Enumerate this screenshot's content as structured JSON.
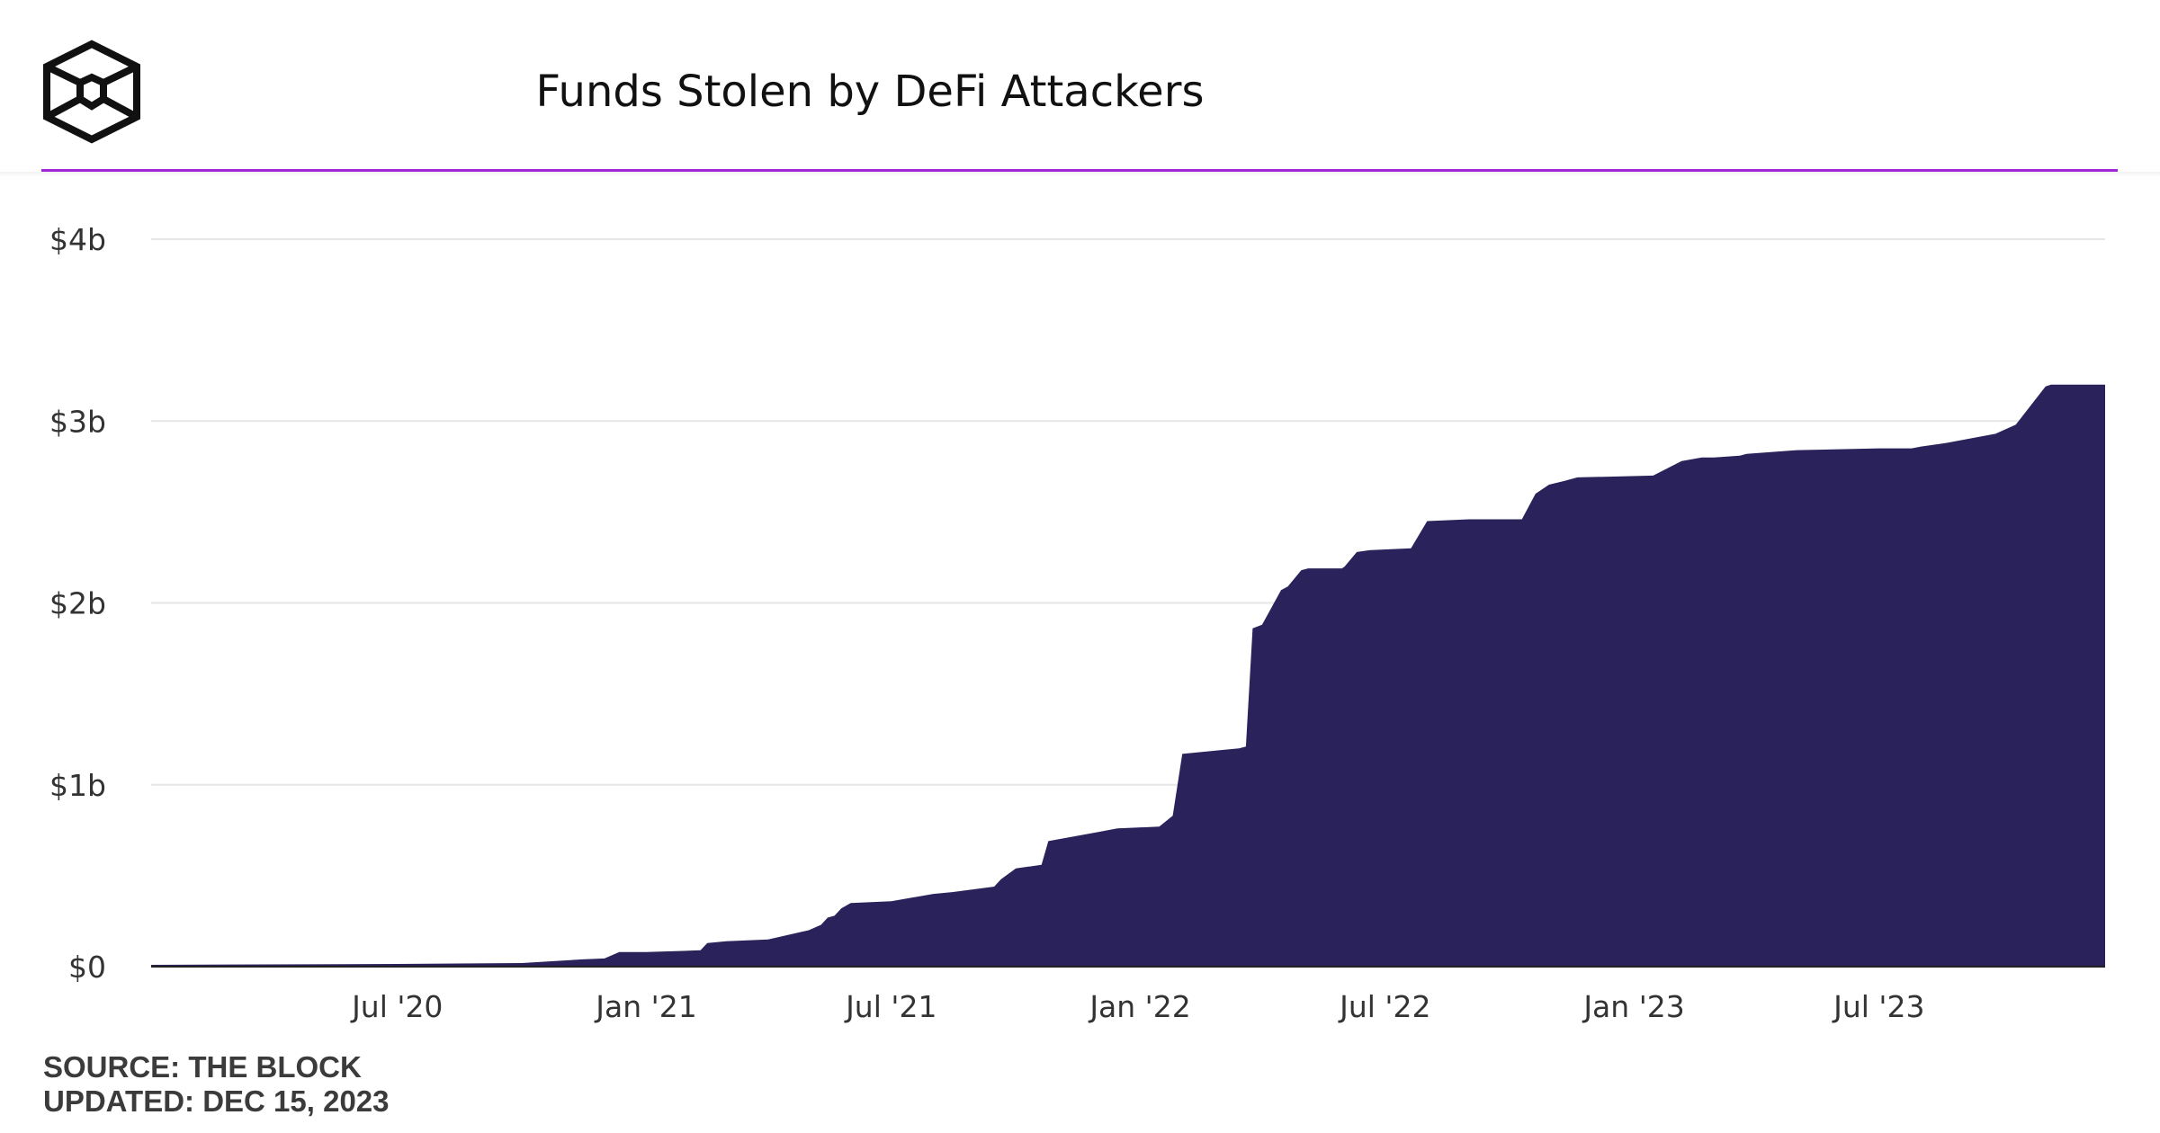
{
  "header": {
    "logo_name": "the-block-cube-logo",
    "title": "Funds Stolen by DeFi Attackers"
  },
  "colors": {
    "area_fill": "#2a225a",
    "accent_rule": "#a126d8",
    "grid": "#e6e6e6",
    "axis_text": "#333333"
  },
  "chart_data": {
    "type": "area",
    "title": "Funds Stolen by DeFi Attackers",
    "xlabel": "",
    "ylabel": "",
    "y_unit": "USD",
    "ylim": [
      0,
      4000000000
    ],
    "xlim": [
      "2020-01-01",
      "2023-12-15"
    ],
    "y_ticks": [
      {
        "value": 0,
        "label": "$0"
      },
      {
        "value": 1000000000,
        "label": "$1b"
      },
      {
        "value": 2000000000,
        "label": "$2b"
      },
      {
        "value": 3000000000,
        "label": "$3b"
      },
      {
        "value": 4000000000,
        "label": "$4b"
      }
    ],
    "x_ticks": [
      {
        "date": "2020-07-01",
        "label": "Jul '20"
      },
      {
        "date": "2021-01-01",
        "label": "Jan '21"
      },
      {
        "date": "2021-07-01",
        "label": "Jul '21"
      },
      {
        "date": "2022-01-01",
        "label": "Jan '22"
      },
      {
        "date": "2022-07-01",
        "label": "Jul '22"
      },
      {
        "date": "2023-01-01",
        "label": "Jan '23"
      },
      {
        "date": "2023-07-01",
        "label": "Jul '23"
      }
    ],
    "grid": true,
    "legend": "none",
    "series": [
      {
        "x": [
          "2020-01-01",
          "2020-07-01",
          "2020-10-01",
          "2020-11-15",
          "2020-12-01",
          "2020-12-12",
          "2021-01-01",
          "2021-02-10",
          "2021-02-15",
          "2021-03-01",
          "2021-04-01",
          "2021-05-01",
          "2021-05-10",
          "2021-05-15",
          "2021-05-20",
          "2021-05-25",
          "2021-06-01",
          "2021-07-01",
          "2021-08-01",
          "2021-08-15",
          "2021-09-15",
          "2021-09-20",
          "2021-10-01",
          "2021-10-20",
          "2021-10-25",
          "2021-12-01",
          "2021-12-15",
          "2022-01-15",
          "2022-01-25",
          "2022-02-01",
          "2022-03-01",
          "2022-03-15",
          "2022-03-20",
          "2022-03-25",
          "2022-04-01",
          "2022-04-15",
          "2022-04-20",
          "2022-04-30",
          "2022-05-05",
          "2022-05-30",
          "2022-06-01",
          "2022-06-10",
          "2022-06-20",
          "2022-07-20",
          "2022-08-01",
          "2022-09-01",
          "2022-10-10",
          "2022-10-20",
          "2022-10-30",
          "2022-11-10",
          "2022-11-20",
          "2023-01-15",
          "2023-02-05",
          "2023-02-20",
          "2023-03-01",
          "2023-03-20",
          "2023-03-25",
          "2023-05-01",
          "2023-07-01",
          "2023-07-25",
          "2023-08-01",
          "2023-08-20",
          "2023-09-25",
          "2023-10-10",
          "2023-11-01",
          "2023-11-05",
          "2023-12-15"
        ],
        "y": [
          10000000,
          15000000,
          20000000,
          40000000,
          45000000,
          80000000,
          80000000,
          90000000,
          130000000,
          140000000,
          150000000,
          200000000,
          230000000,
          270000000,
          280000000,
          320000000,
          350000000,
          360000000,
          400000000,
          410000000,
          440000000,
          480000000,
          540000000,
          560000000,
          690000000,
          740000000,
          760000000,
          770000000,
          830000000,
          1170000000,
          1190000000,
          1200000000,
          1210000000,
          1860000000,
          1880000000,
          2070000000,
          2090000000,
          2180000000,
          2190000000,
          2190000000,
          2200000000,
          2280000000,
          2290000000,
          2300000000,
          2450000000,
          2460000000,
          2460000000,
          2600000000,
          2650000000,
          2670000000,
          2690000000,
          2700000000,
          2780000000,
          2800000000,
          2800000000,
          2810000000,
          2820000000,
          2840000000,
          2850000000,
          2850000000,
          2860000000,
          2880000000,
          2930000000,
          2980000000,
          3190000000,
          3200000000,
          3200000000
        ]
      }
    ]
  },
  "footer": {
    "source": "SOURCE: THE BLOCK",
    "updated": "UPDATED: DEC 15, 2023"
  }
}
